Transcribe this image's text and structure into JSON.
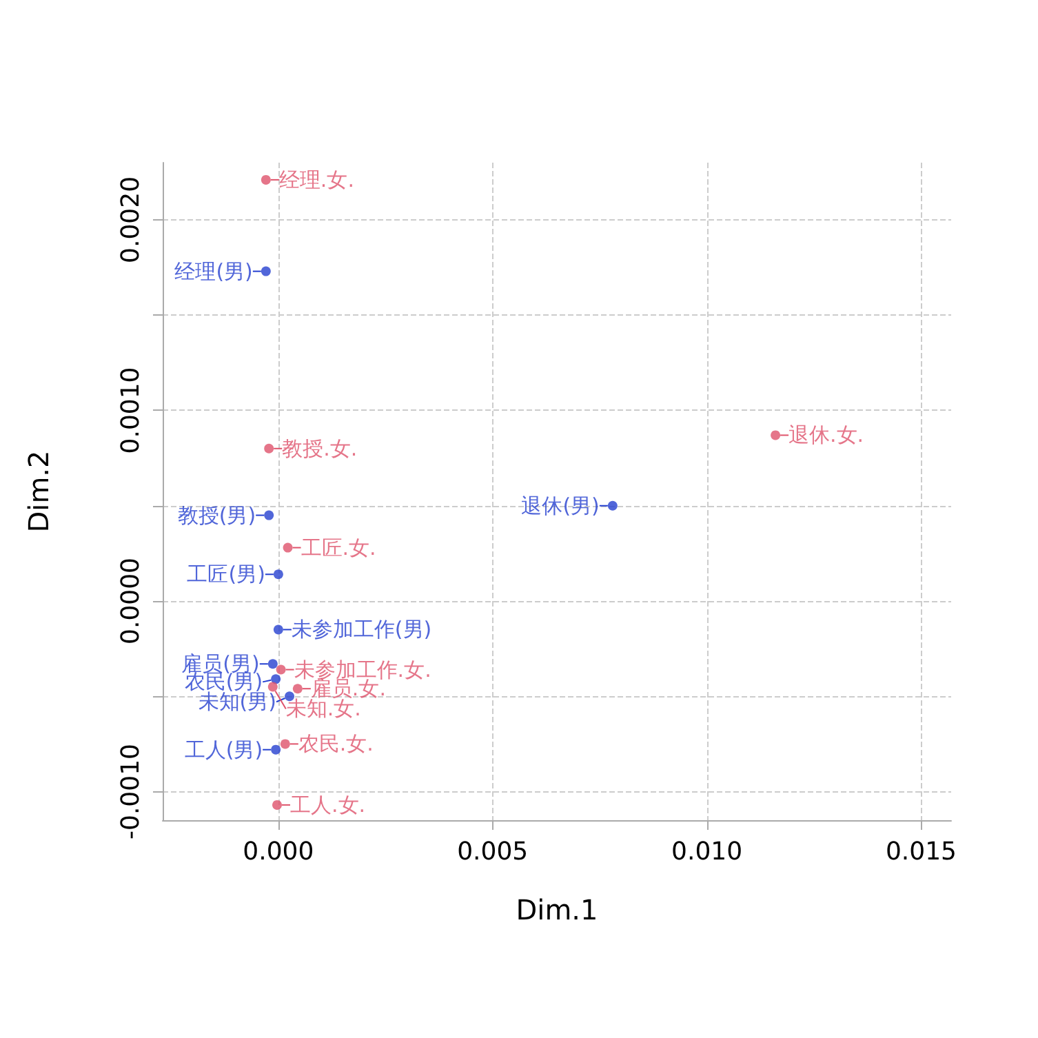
{
  "chart_data": {
    "type": "scatter",
    "xlabel": "Dim.1",
    "ylabel": "Dim.2",
    "xlim": [
      -0.0027,
      0.0157
    ],
    "ylim": [
      -0.00115,
      0.0023
    ],
    "xticks": [
      {
        "value": 0,
        "label": "0.000"
      },
      {
        "value": 0.005,
        "label": "0.005"
      },
      {
        "value": 0.01,
        "label": "0.010"
      },
      {
        "value": 0.015,
        "label": "0.015"
      }
    ],
    "yticks": [
      {
        "value": -0.001,
        "label": "-0.0010"
      },
      {
        "value": -0.0005,
        "label": null
      },
      {
        "value": 0,
        "label": "0.0000"
      },
      {
        "value": 0.0005,
        "label": null
      },
      {
        "value": 0.001,
        "label": "0.0010"
      },
      {
        "value": 0.0015,
        "label": null
      },
      {
        "value": 0.002,
        "label": "0.0020"
      }
    ],
    "grid": true,
    "marker": "circle",
    "series": [
      {
        "color": "#2540d0",
        "x": [
          -0.00029,
          -0.00022,
          0,
          0.0078,
          0,
          -0.00013,
          -6e-05,
          0.00026,
          -6e-05
        ],
        "values": [
          0.00173,
          0.00045,
          0.00014,
          0.0005,
          -0.00015,
          -0.00033,
          -0.00041,
          -0.0005,
          -0.00078
        ],
        "value_labels": [
          "经理(男)",
          "教授(男)",
          "工匠(男)",
          "退休(男)",
          "未参加工作(男)",
          "雇员(男)",
          "农民(男)",
          "未知(男)",
          "工人(男)"
        ]
      },
      {
        "color": "#df536b",
        "x": [
          -0.00029,
          -0.00022,
          0.00022,
          0.0116,
          6e-05,
          0.00045,
          -0.00013,
          0.00016,
          -3e-05
        ],
        "values": [
          0.00221,
          0.0008,
          0.00028,
          0.00087,
          -0.00036,
          -0.00046,
          -0.00045,
          -0.00075,
          -0.00107
        ],
        "value_labels": [
          "经理.女.",
          "教授.女.",
          "工匠.女.",
          "退休.女.",
          "未参加工作.女.",
          "雇员.女.",
          "未知.女.",
          "农民.女.",
          "工人.女."
        ]
      }
    ]
  }
}
